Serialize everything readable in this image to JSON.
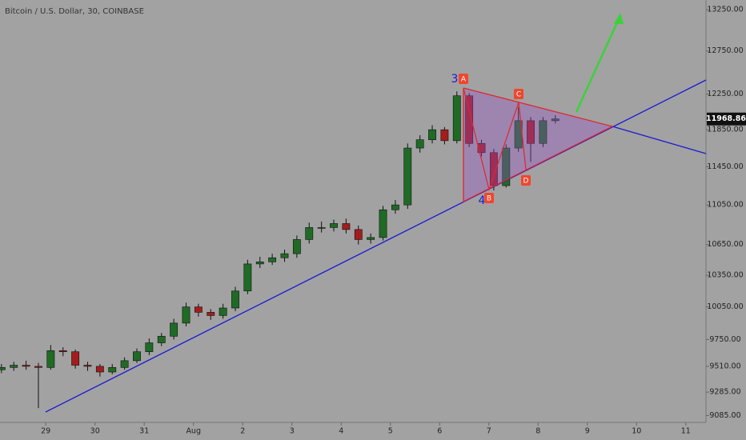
{
  "chart_data": {
    "type": "candlestick",
    "title": "Bitcoin / U.S. Dollar, 30, COINBASE",
    "x": [
      -0.9,
      -0.65,
      -0.4,
      -0.15,
      0.1,
      0.35,
      0.6,
      0.85,
      1.1,
      1.35,
      1.6,
      1.85,
      2.1,
      2.35,
      2.6,
      2.85,
      3.1,
      3.35,
      3.6,
      3.85,
      4.1,
      4.35,
      4.6,
      4.85,
      5.1,
      5.35,
      5.6,
      5.85,
      6.1,
      6.35,
      6.6,
      6.85,
      7.1,
      7.35,
      7.6,
      7.85,
      8.1,
      8.35,
      8.6,
      8.85,
      9.1,
      9.35,
      9.6,
      9.85,
      10.1,
      10.35
    ],
    "open": [
      9480,
      9500,
      9520,
      9510,
      9500,
      9650,
      9640,
      9520,
      9510,
      9460,
      9500,
      9560,
      9640,
      9720,
      9780,
      9900,
      10050,
      10000,
      9970,
      10040,
      10200,
      10460,
      10480,
      10520,
      10560,
      10700,
      10820,
      10820,
      10860,
      10800,
      10700,
      10720,
      11000,
      11050,
      11650,
      11740,
      11850,
      11730,
      12230,
      11700,
      11600,
      11250,
      11650,
      11950,
      11700,
      11950
    ],
    "high": [
      9530,
      9550,
      9560,
      9540,
      9700,
      9680,
      9660,
      9550,
      9530,
      9530,
      9590,
      9670,
      9760,
      9810,
      9940,
      10090,
      10080,
      10030,
      10080,
      10240,
      10500,
      10530,
      10560,
      10600,
      10740,
      10870,
      10880,
      10900,
      10910,
      10840,
      10760,
      11040,
      11100,
      11700,
      11790,
      11900,
      11880,
      12280,
      12260,
      11740,
      11640,
      11690,
      12100,
      11990,
      11990,
      12010
    ],
    "low": [
      9450,
      9470,
      9480,
      9148,
      9480,
      9600,
      9490,
      9470,
      9420,
      9440,
      9480,
      9540,
      9610,
      9690,
      9750,
      9870,
      9960,
      9930,
      9940,
      10010,
      10170,
      10420,
      10450,
      10480,
      10520,
      10660,
      10770,
      10780,
      10760,
      10650,
      10660,
      10690,
      10960,
      11010,
      11600,
      11700,
      11690,
      11700,
      11660,
      11560,
      11200,
      11230,
      11610,
      11500,
      11660,
      11920
    ],
    "close": [
      9500,
      9520,
      9510,
      9500,
      9650,
      9640,
      9520,
      9510,
      9460,
      9500,
      9560,
      9640,
      9720,
      9780,
      9900,
      10050,
      10000,
      9970,
      10040,
      10200,
      10460,
      10480,
      10520,
      10560,
      10700,
      10820,
      10820,
      10860,
      10800,
      10700,
      10720,
      11000,
      11050,
      11650,
      11740,
      11850,
      11730,
      12230,
      11700,
      11600,
      11250,
      11650,
      11950,
      11700,
      11950,
      11969
    ],
    "up_color": "#1f6b25",
    "down_color": "#a31d1d",
    "xlim": [
      -0.93,
      13.41
    ],
    "xticks": [
      {
        "value": 0,
        "label": "29"
      },
      {
        "value": 1,
        "label": "30"
      },
      {
        "value": 2,
        "label": "31"
      },
      {
        "value": 3,
        "label": "Aug"
      },
      {
        "value": 4,
        "label": "2"
      },
      {
        "value": 5,
        "label": "3"
      },
      {
        "value": 6,
        "label": "4"
      },
      {
        "value": 7,
        "label": "5"
      },
      {
        "value": 8,
        "label": "6"
      },
      {
        "value": 9,
        "label": "7"
      },
      {
        "value": 10,
        "label": "8"
      },
      {
        "value": 11,
        "label": "9"
      },
      {
        "value": 12,
        "label": "10"
      },
      {
        "value": 13,
        "label": "11"
      }
    ],
    "ylim": [
      9027,
      13369
    ],
    "log_scale": true,
    "yticks": [
      {
        "value": 9085,
        "label": "9085.00"
      },
      {
        "value": 9285,
        "label": "9285.00"
      },
      {
        "value": 9510,
        "label": "9510.00"
      },
      {
        "value": 9750,
        "label": "9750.00"
      },
      {
        "value": 10050,
        "label": "10050.00"
      },
      {
        "value": 10350,
        "label": "10350.00"
      },
      {
        "value": 10650,
        "label": "10650.00"
      },
      {
        "value": 11050,
        "label": "11050.00"
      },
      {
        "value": 11450,
        "label": "11450.00"
      },
      {
        "value": 11850,
        "label": "11850.00"
      },
      {
        "value": 12250,
        "label": "12250.00"
      },
      {
        "value": 12750,
        "label": "12750.00"
      },
      {
        "value": 13250,
        "label": "13250.00"
      }
    ],
    "last_price": 11968.86,
    "wave_labels": [
      "3",
      "4"
    ],
    "point_labels": [
      "A",
      "B",
      "C",
      "D"
    ]
  }
}
